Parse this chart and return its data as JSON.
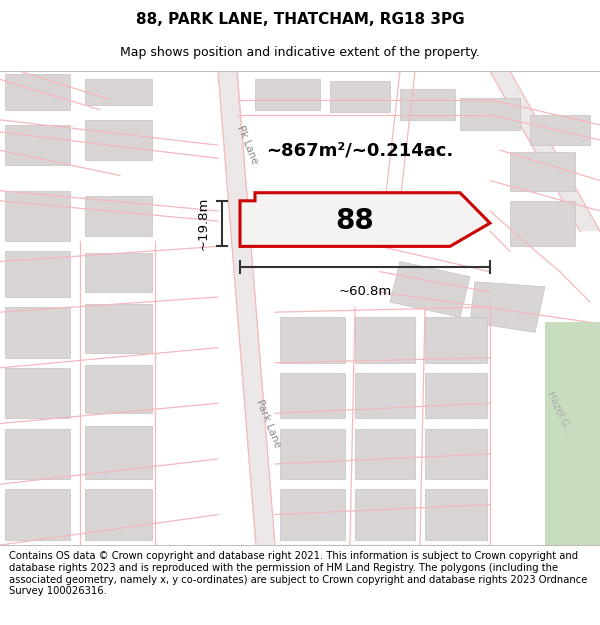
{
  "title": "88, PARK LANE, THATCHAM, RG18 3PG",
  "subtitle": "Map shows position and indicative extent of the property.",
  "footer": "Contains OS data © Crown copyright and database right 2021. This information is subject to Crown copyright and database rights 2023 and is reproduced with the permission of HM Land Registry. The polygons (including the associated geometry, namely x, y co-ordinates) are subject to Crown copyright and database rights 2023 Ordnance Survey 100026316.",
  "area_text": "~867m²/~0.214ac.",
  "label_88": "88",
  "dim_width": "~60.8m",
  "dim_height": "~19.8m",
  "road_label_upper": "Pk Lane",
  "road_label_lower": "Park Lane",
  "hazel_grove": "Hazel G...",
  "map_bg": "#f2eeee",
  "light_red": "#f5b8bc",
  "light_red2": "#eecccc",
  "building_fill": "#d9d5d5",
  "building_outline": "#c8c0c0",
  "plot_fill": "#f5f2f2",
  "plot_outline": "#cc0000",
  "green_fill": "#c8ddc0",
  "dim_color": "#333333",
  "title_fontsize": 11,
  "subtitle_fontsize": 9,
  "footer_fontsize": 7.2
}
